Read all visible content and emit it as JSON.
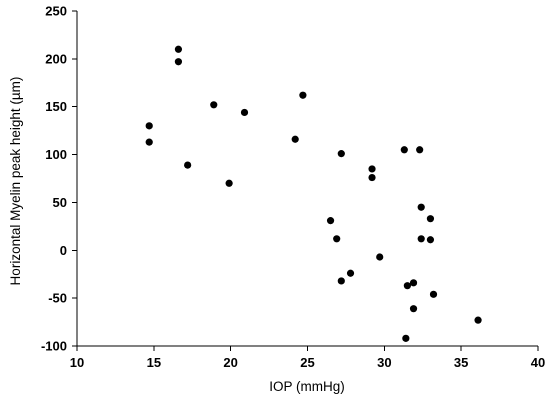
{
  "chart_data": {
    "type": "scatter",
    "title": "",
    "xlabel": "IOP (mmHg)",
    "ylabel": "Horizontal Myelin peak height (µm)",
    "xlim": [
      10,
      40
    ],
    "ylim": [
      -100,
      250
    ],
    "xticks": [
      10,
      15,
      20,
      25,
      30,
      35,
      40
    ],
    "yticks": [
      -100,
      -50,
      0,
      50,
      100,
      150,
      200,
      250
    ],
    "grid": false,
    "legend": "none",
    "marker_color": "#000000",
    "series": [
      {
        "x": [
          14.7,
          14.7,
          16.6,
          16.6,
          17.2,
          18.9,
          19.9,
          20.9,
          24.2,
          24.7,
          26.5,
          26.9,
          27.2,
          27.2,
          27.8,
          29.2,
          29.2,
          29.7,
          31.3,
          31.4,
          31.5,
          31.9,
          31.9,
          32.3,
          32.4,
          32.4,
          33.0,
          33.0,
          33.2,
          36.1
        ],
        "y": [
          130,
          113,
          210,
          197,
          89,
          152,
          70,
          144,
          116,
          162,
          31,
          12,
          101,
          -32,
          -24,
          85,
          76,
          -7,
          105,
          -92,
          -37,
          -61,
          -34,
          105,
          45,
          12,
          33,
          11,
          -46,
          -73
        ]
      }
    ]
  }
}
